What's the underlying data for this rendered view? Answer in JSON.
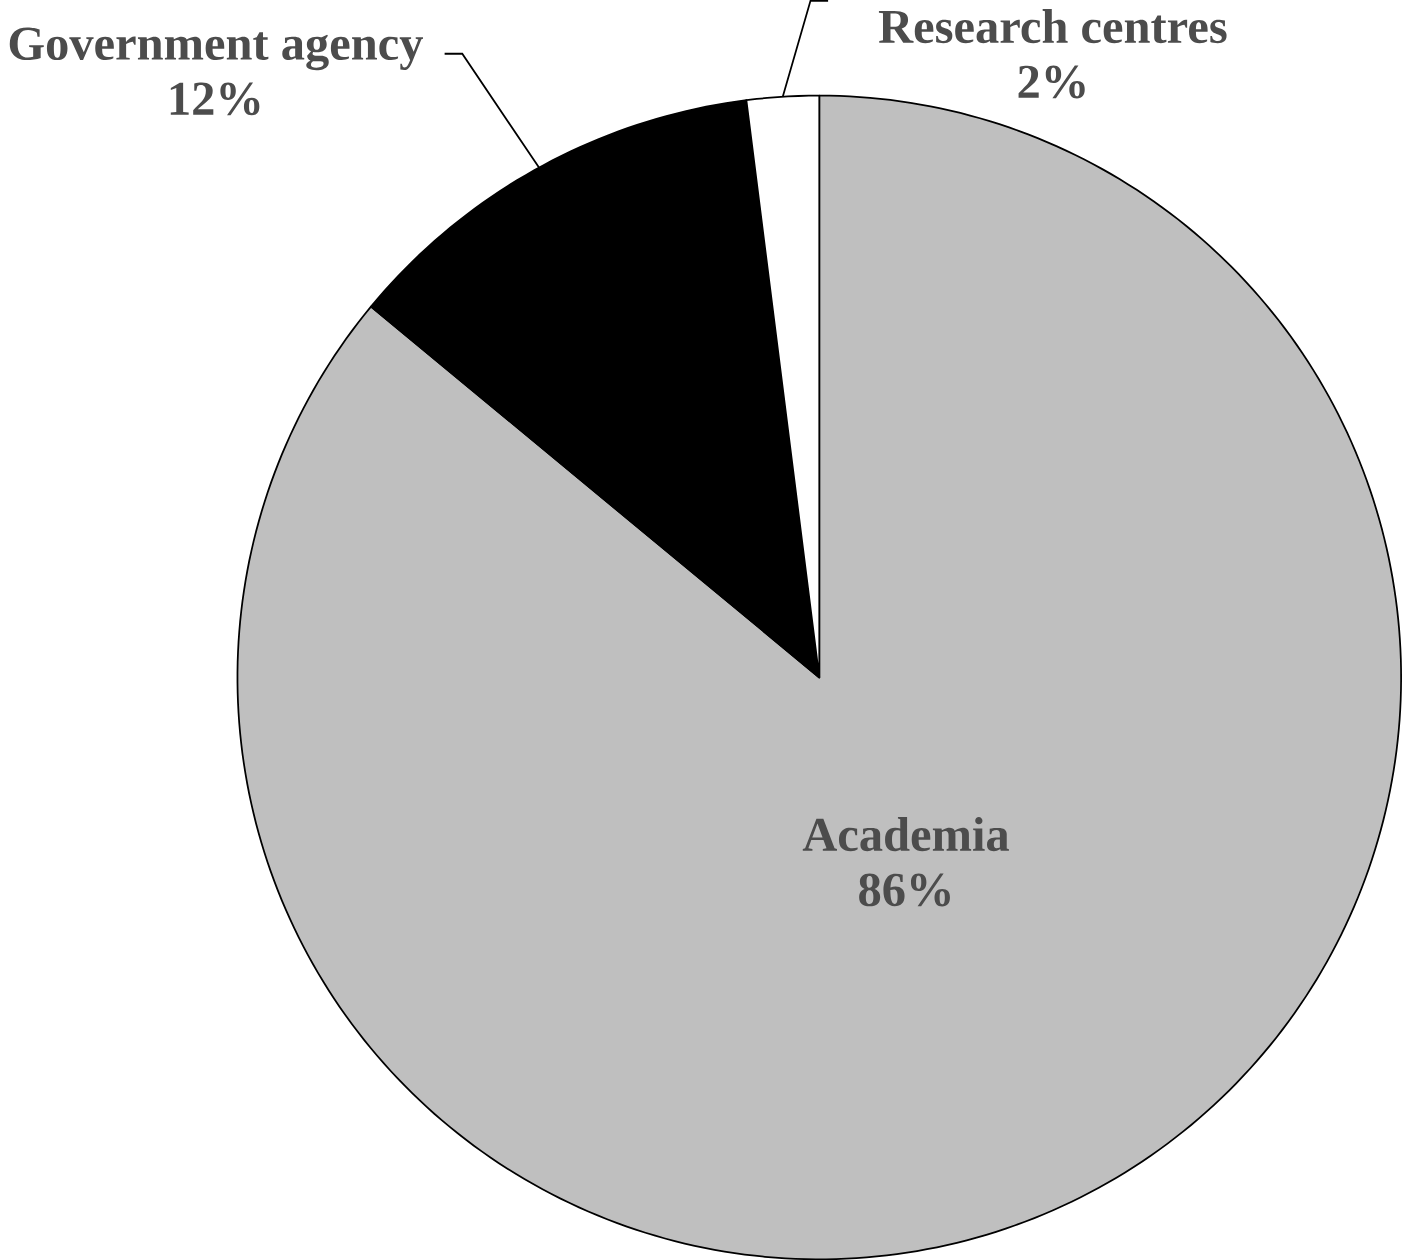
{
  "chart_data": {
    "type": "pie",
    "categories": [
      "Academia",
      "Government agency",
      "Research centres"
    ],
    "values": [
      86,
      12,
      2
    ],
    "value_labels": [
      "86%",
      "12%",
      "2%"
    ],
    "colors": [
      "#bfbfbf",
      "#000000",
      "#ffffff"
    ]
  }
}
